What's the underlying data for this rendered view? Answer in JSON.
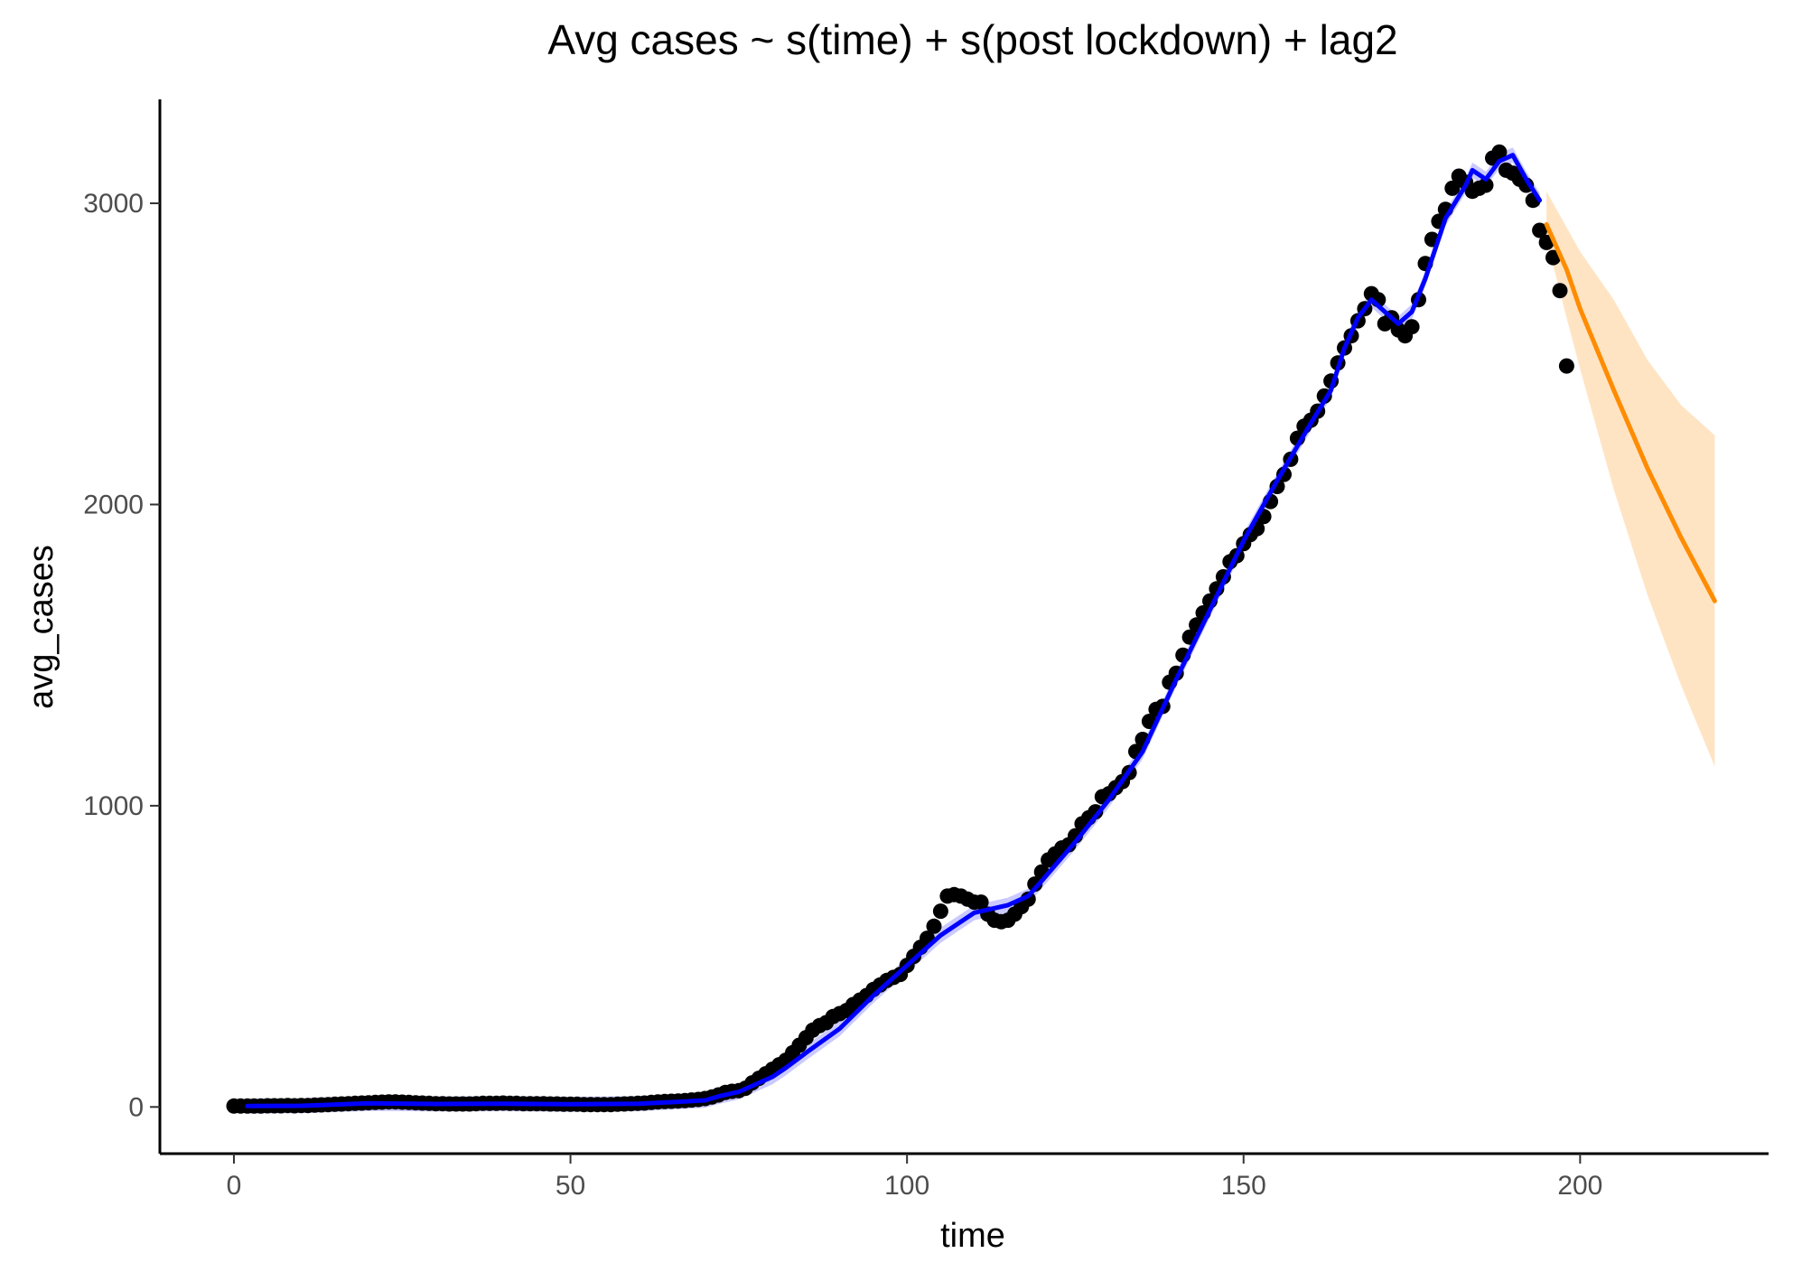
{
  "chart_data": {
    "type": "line",
    "title": "Avg cases  ~  s(time) + s(post lockdown) + lag2",
    "xlabel": "time",
    "ylabel": "avg_cases",
    "xlim": [
      -11,
      228
    ],
    "ylim": [
      -155,
      3345
    ],
    "x_ticks": [
      0,
      50,
      100,
      150,
      200
    ],
    "x_tick_labels": [
      "0",
      "50",
      "100",
      "150",
      "200"
    ],
    "y_ticks": [
      0,
      1000,
      2000,
      3000
    ],
    "y_tick_labels": [
      "0",
      "1000",
      "2000",
      "3000"
    ],
    "grid": false,
    "legend": "none",
    "colors": {
      "points": "#000000",
      "fit": "#0000ff",
      "fit_band": "#b3b3ff",
      "forecast": "#ff8c00",
      "forecast_band": "#ffe4c4"
    },
    "series": [
      {
        "kind": "points",
        "points": [
          [
            0,
            3
          ],
          [
            1,
            3
          ],
          [
            2,
            3
          ],
          [
            3,
            3
          ],
          [
            4,
            3
          ],
          [
            5,
            4
          ],
          [
            6,
            4
          ],
          [
            7,
            4
          ],
          [
            8,
            5
          ],
          [
            9,
            4
          ],
          [
            10,
            5
          ],
          [
            11,
            5
          ],
          [
            12,
            6
          ],
          [
            13,
            7
          ],
          [
            14,
            8
          ],
          [
            15,
            9
          ],
          [
            16,
            10
          ],
          [
            17,
            11
          ],
          [
            18,
            12
          ],
          [
            19,
            13
          ],
          [
            20,
            14
          ],
          [
            21,
            15
          ],
          [
            22,
            16
          ],
          [
            23,
            17
          ],
          [
            24,
            17
          ],
          [
            25,
            16
          ],
          [
            26,
            15
          ],
          [
            27,
            14
          ],
          [
            28,
            13
          ],
          [
            29,
            12
          ],
          [
            30,
            11
          ],
          [
            31,
            11
          ],
          [
            32,
            10
          ],
          [
            33,
            10
          ],
          [
            34,
            10
          ],
          [
            35,
            10
          ],
          [
            36,
            11
          ],
          [
            37,
            12
          ],
          [
            38,
            12
          ],
          [
            39,
            12
          ],
          [
            40,
            13
          ],
          [
            41,
            12
          ],
          [
            42,
            12
          ],
          [
            43,
            11
          ],
          [
            44,
            11
          ],
          [
            45,
            11
          ],
          [
            46,
            11
          ],
          [
            47,
            10
          ],
          [
            48,
            10
          ],
          [
            49,
            9
          ],
          [
            50,
            9
          ],
          [
            51,
            9
          ],
          [
            52,
            8
          ],
          [
            53,
            8
          ],
          [
            54,
            8
          ],
          [
            55,
            8
          ],
          [
            56,
            8
          ],
          [
            57,
            9
          ],
          [
            58,
            10
          ],
          [
            59,
            11
          ],
          [
            60,
            12
          ],
          [
            61,
            13
          ],
          [
            62,
            15
          ],
          [
            63,
            17
          ],
          [
            64,
            18
          ],
          [
            65,
            19
          ],
          [
            66,
            20
          ],
          [
            67,
            21
          ],
          [
            68,
            23
          ],
          [
            69,
            25
          ],
          [
            70,
            28
          ],
          [
            71,
            33
          ],
          [
            72,
            40
          ],
          [
            73,
            48
          ],
          [
            74,
            52
          ],
          [
            75,
            54
          ],
          [
            76,
            62
          ],
          [
            77,
            80
          ],
          [
            78,
            95
          ],
          [
            79,
            110
          ],
          [
            80,
            125
          ],
          [
            81,
            140
          ],
          [
            82,
            155
          ],
          [
            83,
            180
          ],
          [
            84,
            205
          ],
          [
            85,
            230
          ],
          [
            86,
            255
          ],
          [
            87,
            270
          ],
          [
            88,
            280
          ],
          [
            89,
            300
          ],
          [
            90,
            310
          ],
          [
            91,
            320
          ],
          [
            92,
            340
          ],
          [
            93,
            355
          ],
          [
            94,
            370
          ],
          [
            95,
            390
          ],
          [
            96,
            405
          ],
          [
            97,
            420
          ],
          [
            98,
            430
          ],
          [
            99,
            440
          ],
          [
            100,
            470
          ],
          [
            101,
            500
          ],
          [
            102,
            530
          ],
          [
            103,
            560
          ],
          [
            104,
            600
          ],
          [
            105,
            650
          ],
          [
            106,
            700
          ],
          [
            107,
            705
          ],
          [
            108,
            700
          ],
          [
            109,
            690
          ],
          [
            110,
            680
          ],
          [
            111,
            680
          ],
          [
            112,
            640
          ],
          [
            113,
            620
          ],
          [
            114,
            615
          ],
          [
            115,
            620
          ],
          [
            116,
            640
          ],
          [
            117,
            665
          ],
          [
            118,
            690
          ],
          [
            119,
            740
          ],
          [
            120,
            780
          ],
          [
            121,
            820
          ],
          [
            122,
            840
          ],
          [
            123,
            860
          ],
          [
            124,
            870
          ],
          [
            125,
            900
          ],
          [
            126,
            940
          ],
          [
            127,
            960
          ],
          [
            128,
            980
          ],
          [
            129,
            1030
          ],
          [
            130,
            1040
          ],
          [
            131,
            1060
          ],
          [
            132,
            1080
          ],
          [
            133,
            1110
          ],
          [
            134,
            1180
          ],
          [
            135,
            1220
          ],
          [
            136,
            1280
          ],
          [
            137,
            1320
          ],
          [
            138,
            1330
          ],
          [
            139,
            1410
          ],
          [
            140,
            1440
          ],
          [
            141,
            1500
          ],
          [
            142,
            1560
          ],
          [
            143,
            1600
          ],
          [
            144,
            1640
          ],
          [
            145,
            1680
          ],
          [
            146,
            1720
          ],
          [
            147,
            1760
          ],
          [
            148,
            1810
          ],
          [
            149,
            1830
          ],
          [
            150,
            1870
          ],
          [
            151,
            1900
          ],
          [
            152,
            1920
          ],
          [
            153,
            1960
          ],
          [
            154,
            2010
          ],
          [
            155,
            2060
          ],
          [
            156,
            2100
          ],
          [
            157,
            2150
          ],
          [
            158,
            2220
          ],
          [
            159,
            2260
          ],
          [
            160,
            2280
          ],
          [
            161,
            2310
          ],
          [
            162,
            2360
          ],
          [
            163,
            2410
          ],
          [
            164,
            2470
          ],
          [
            165,
            2520
          ],
          [
            166,
            2560
          ],
          [
            167,
            2610
          ],
          [
            168,
            2650
          ],
          [
            169,
            2700
          ],
          [
            170,
            2680
          ],
          [
            171,
            2600
          ],
          [
            172,
            2620
          ],
          [
            173,
            2580
          ],
          [
            174,
            2560
          ],
          [
            175,
            2590
          ],
          [
            176,
            2680
          ],
          [
            177,
            2800
          ],
          [
            178,
            2880
          ],
          [
            179,
            2940
          ],
          [
            180,
            2980
          ],
          [
            181,
            3050
          ],
          [
            182,
            3090
          ],
          [
            183,
            3070
          ],
          [
            184,
            3040
          ],
          [
            185,
            3050
          ],
          [
            186,
            3060
          ],
          [
            187,
            3150
          ],
          [
            188,
            3170
          ],
          [
            189,
            3110
          ],
          [
            190,
            3100
          ],
          [
            191,
            3080
          ],
          [
            192,
            3060
          ],
          [
            193,
            3010
          ],
          [
            194,
            2910
          ],
          [
            195,
            2870
          ],
          [
            196,
            2820
          ],
          [
            197,
            2710
          ],
          [
            198,
            2460
          ]
        ]
      },
      {
        "kind": "fit",
        "points": [
          [
            2,
            3
          ],
          [
            10,
            4
          ],
          [
            20,
            12
          ],
          [
            30,
            10
          ],
          [
            40,
            11
          ],
          [
            50,
            9
          ],
          [
            60,
            11
          ],
          [
            65,
            16
          ],
          [
            70,
            22
          ],
          [
            72,
            35
          ],
          [
            75,
            50
          ],
          [
            80,
            100
          ],
          [
            82,
            130
          ],
          [
            85,
            180
          ],
          [
            90,
            260
          ],
          [
            95,
            370
          ],
          [
            100,
            470
          ],
          [
            105,
            570
          ],
          [
            107,
            600
          ],
          [
            110,
            645
          ],
          [
            115,
            670
          ],
          [
            118,
            700
          ],
          [
            120,
            750
          ],
          [
            125,
            880
          ],
          [
            130,
            1020
          ],
          [
            135,
            1180
          ],
          [
            140,
            1420
          ],
          [
            145,
            1650
          ],
          [
            150,
            1880
          ],
          [
            155,
            2080
          ],
          [
            160,
            2270
          ],
          [
            163,
            2380
          ],
          [
            165,
            2520
          ],
          [
            167,
            2620
          ],
          [
            169,
            2680
          ],
          [
            171,
            2640
          ],
          [
            173,
            2600
          ],
          [
            175,
            2640
          ],
          [
            177,
            2750
          ],
          [
            180,
            2950
          ],
          [
            183,
            3060
          ],
          [
            184,
            3110
          ],
          [
            186,
            3080
          ],
          [
            188,
            3140
          ],
          [
            190,
            3160
          ],
          [
            192,
            3080
          ],
          [
            194,
            3010
          ]
        ]
      },
      {
        "kind": "forecast",
        "points": [
          [
            195,
            2930
          ],
          [
            198,
            2780
          ],
          [
            200,
            2650
          ],
          [
            205,
            2380
          ],
          [
            210,
            2120
          ],
          [
            215,
            1890
          ],
          [
            220,
            1680
          ]
        ],
        "lower": [
          [
            195,
            2880
          ],
          [
            198,
            2620
          ],
          [
            200,
            2450
          ],
          [
            205,
            2050
          ],
          [
            210,
            1700
          ],
          [
            215,
            1400
          ],
          [
            220,
            1130
          ]
        ],
        "upper": [
          [
            195,
            3040
          ],
          [
            198,
            2920
          ],
          [
            200,
            2840
          ],
          [
            205,
            2680
          ],
          [
            210,
            2480
          ],
          [
            215,
            2330
          ],
          [
            220,
            2230
          ]
        ]
      }
    ]
  }
}
